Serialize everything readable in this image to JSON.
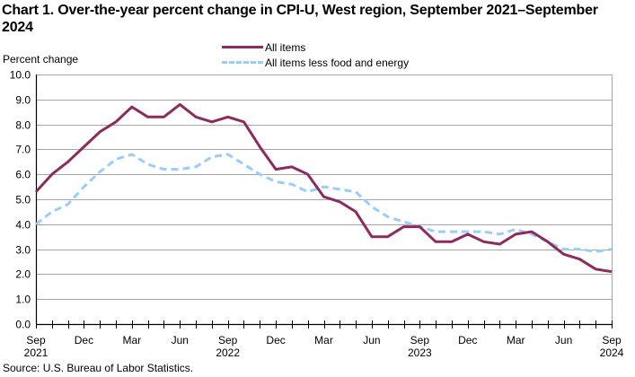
{
  "chart_data": {
    "type": "line",
    "title": "Chart 1. Over-the-year percent change in CPI-U, West region, September 2021–September 2024",
    "ylabel": "Percent change",
    "xlabel": "",
    "ylim": [
      0,
      10
    ],
    "yticks": [
      "0.0",
      "1.0",
      "2.0",
      "3.0",
      "4.0",
      "5.0",
      "6.0",
      "7.0",
      "8.0",
      "9.0",
      "10.0"
    ],
    "ytick_values": [
      0,
      1,
      2,
      3,
      4,
      5,
      6,
      7,
      8,
      9,
      10
    ],
    "grid": true,
    "legend_position": "top-center",
    "x": [
      "Sep 2021",
      "Oct 2021",
      "Nov 2021",
      "Dec 2021",
      "Jan 2022",
      "Feb 2022",
      "Mar 2022",
      "Apr 2022",
      "May 2022",
      "Jun 2022",
      "Jul 2022",
      "Aug 2022",
      "Sep 2022",
      "Oct 2022",
      "Nov 2022",
      "Dec 2022",
      "Jan 2023",
      "Feb 2023",
      "Mar 2023",
      "Apr 2023",
      "May 2023",
      "Jun 2023",
      "Jul 2023",
      "Aug 2023",
      "Sep 2023",
      "Oct 2023",
      "Nov 2023",
      "Dec 2023",
      "Jan 2024",
      "Feb 2024",
      "Mar 2024",
      "Apr 2024",
      "May 2024",
      "Jun 2024",
      "Jul 2024",
      "Aug 2024",
      "Sep 2024"
    ],
    "xtick_labels": [
      {
        "index": 0,
        "month": "Sep",
        "year": "2021"
      },
      {
        "index": 3,
        "month": "Dec",
        "year": ""
      },
      {
        "index": 6,
        "month": "Mar",
        "year": ""
      },
      {
        "index": 9,
        "month": "Jun",
        "year": ""
      },
      {
        "index": 12,
        "month": "Sep",
        "year": "2022"
      },
      {
        "index": 15,
        "month": "Dec",
        "year": ""
      },
      {
        "index": 18,
        "month": "Mar",
        "year": ""
      },
      {
        "index": 21,
        "month": "Jun",
        "year": ""
      },
      {
        "index": 24,
        "month": "Sep",
        "year": "2023"
      },
      {
        "index": 27,
        "month": "Dec",
        "year": ""
      },
      {
        "index": 30,
        "month": "Mar",
        "year": ""
      },
      {
        "index": 33,
        "month": "Jun",
        "year": ""
      },
      {
        "index": 36,
        "month": "Sep",
        "year": "2024"
      }
    ],
    "series": [
      {
        "name": "All items",
        "color": "#8b2c5c",
        "style": "solid",
        "values": [
          5.3,
          6.0,
          6.5,
          7.1,
          7.7,
          8.1,
          8.7,
          8.3,
          8.3,
          8.8,
          8.3,
          8.1,
          8.3,
          8.1,
          7.1,
          6.2,
          6.3,
          6.0,
          5.1,
          4.9,
          4.5,
          3.5,
          3.5,
          3.9,
          3.9,
          3.3,
          3.3,
          3.6,
          3.3,
          3.2,
          3.6,
          3.7,
          3.3,
          2.8,
          2.6,
          2.2,
          2.1
        ]
      },
      {
        "name": "All items less food and energy",
        "color": "#99ccff",
        "style": "dashed",
        "values": [
          4.0,
          4.5,
          4.8,
          5.5,
          6.1,
          6.6,
          6.8,
          6.4,
          6.2,
          6.2,
          6.3,
          6.7,
          6.8,
          6.4,
          6.0,
          5.7,
          5.6,
          5.3,
          5.5,
          5.4,
          5.3,
          4.7,
          4.3,
          4.1,
          3.9,
          3.7,
          3.7,
          3.7,
          3.7,
          3.6,
          3.8,
          3.6,
          3.3,
          3.0,
          3.0,
          2.9,
          3.0
        ]
      }
    ]
  },
  "source": "Source: U.S. Bureau of Labor Statistics."
}
